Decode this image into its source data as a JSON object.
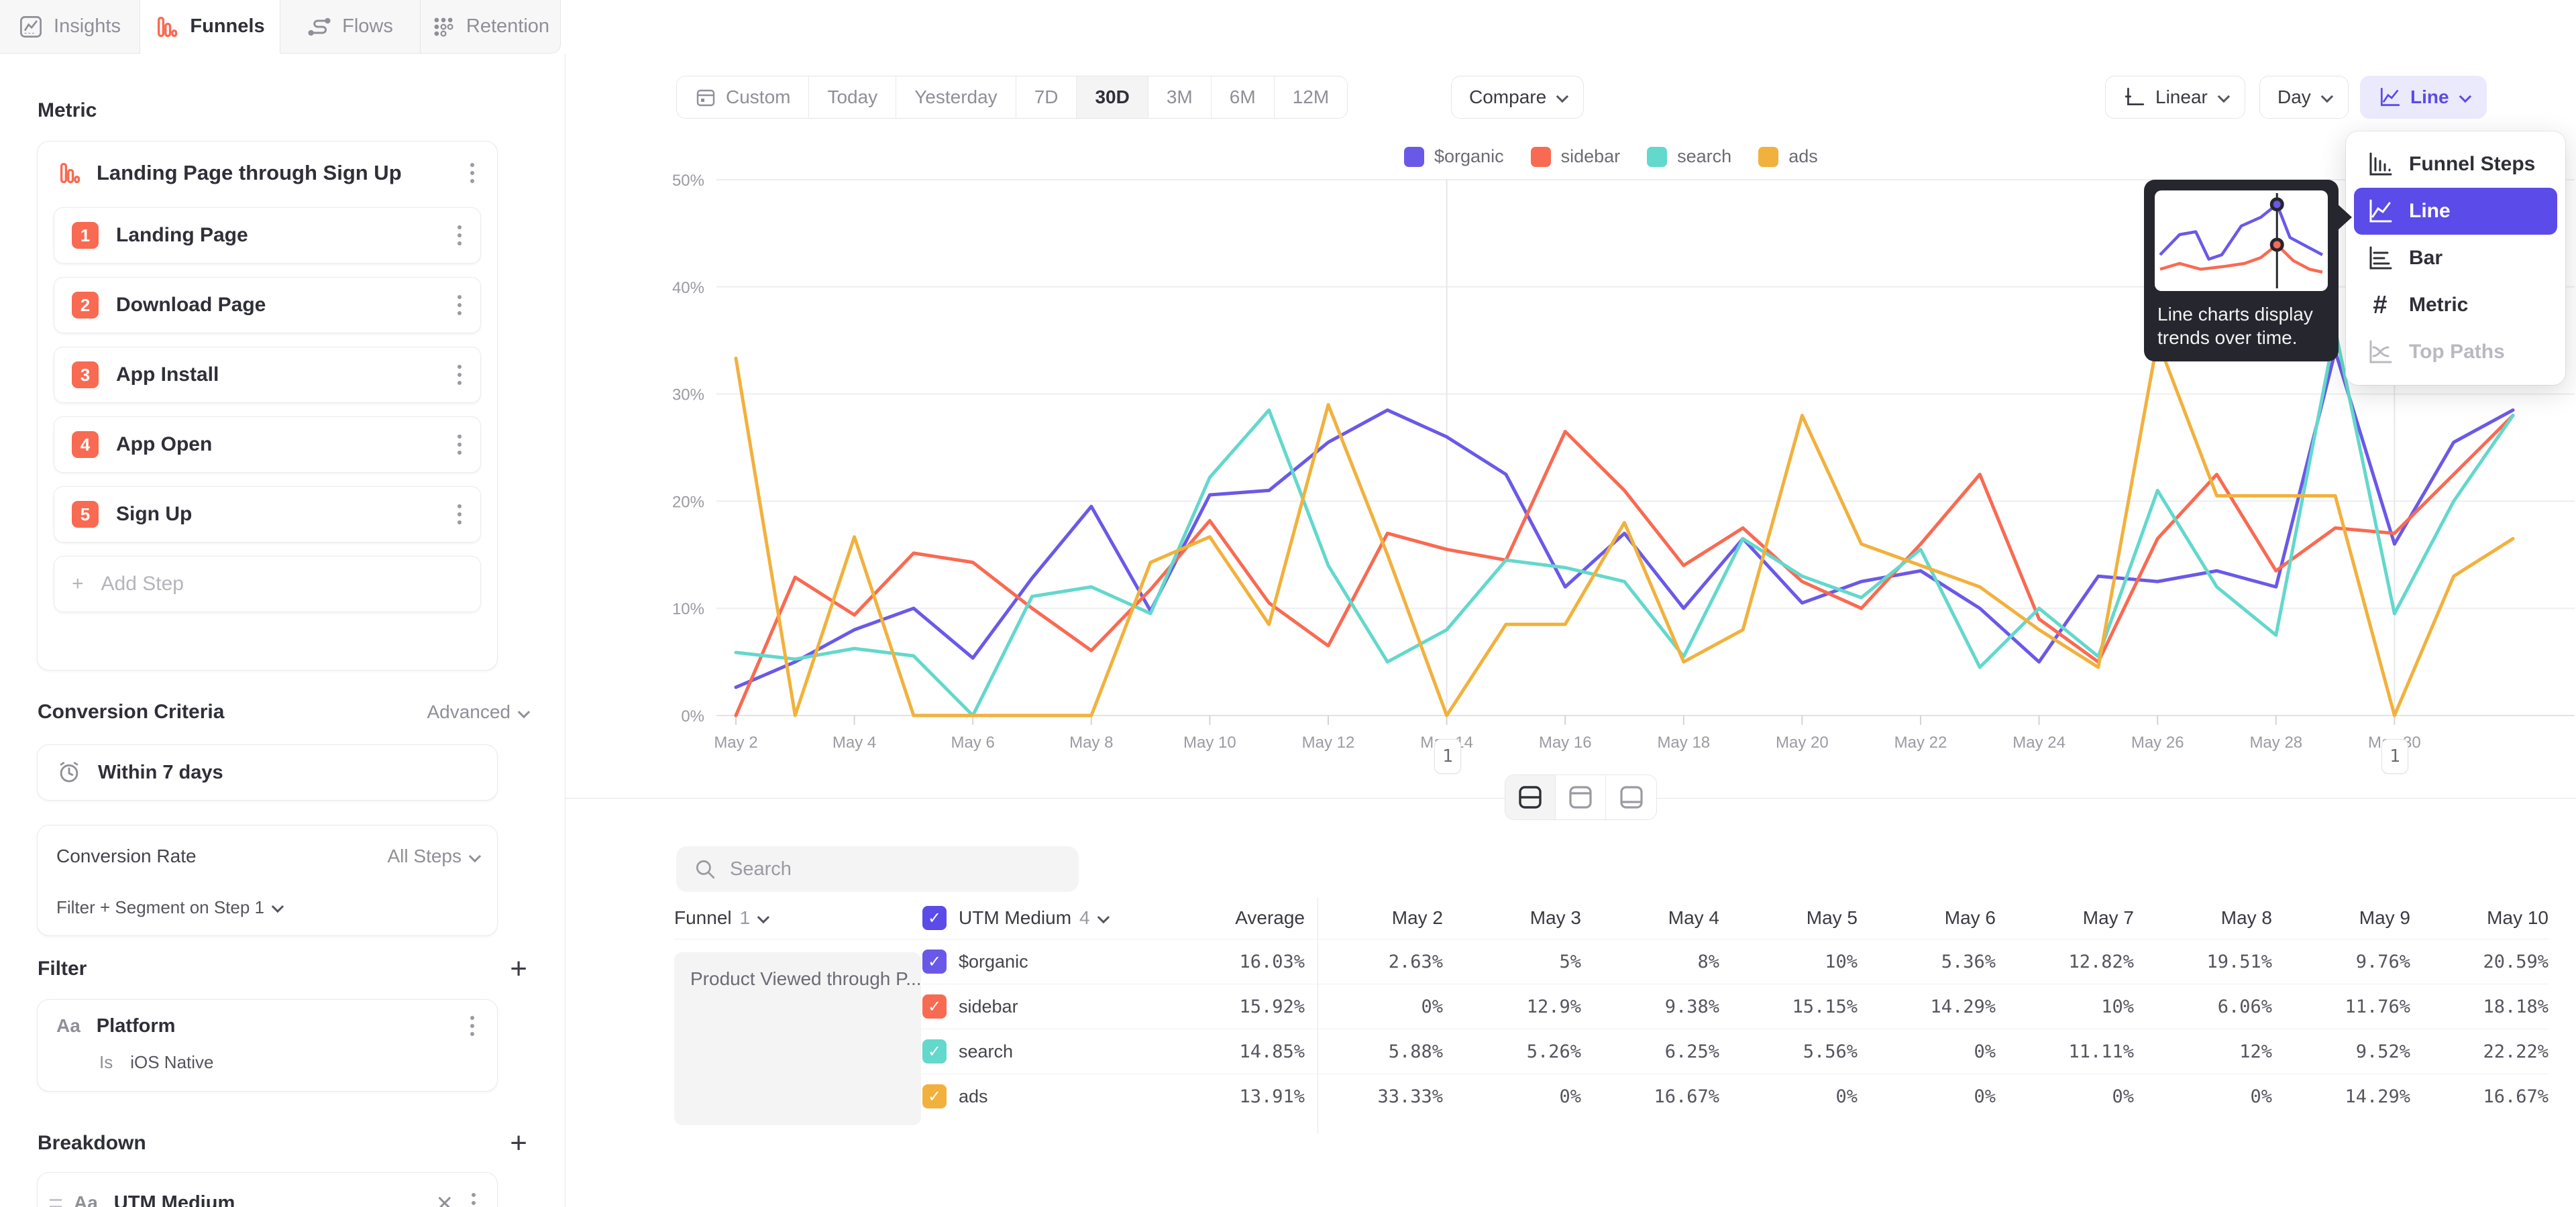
{
  "tabs": {
    "active": "Funnels",
    "items": [
      {
        "label": "Insights"
      },
      {
        "label": "Funnels"
      },
      {
        "label": "Flows"
      },
      {
        "label": "Retention"
      }
    ]
  },
  "sidebar": {
    "metric_label": "Metric",
    "funnel": {
      "title": "Landing Page through Sign Up",
      "steps": [
        {
          "num": "1",
          "label": "Landing Page"
        },
        {
          "num": "2",
          "label": "Download Page"
        },
        {
          "num": "3",
          "label": "App Install"
        },
        {
          "num": "4",
          "label": "App Open"
        },
        {
          "num": "5",
          "label": "Sign Up"
        }
      ],
      "add_step": "Add Step"
    },
    "conversion_criteria": {
      "label": "Conversion Criteria",
      "mode": "Advanced",
      "window": "Within 7 days",
      "rate_label": "Conversion Rate",
      "rate_value": "All Steps",
      "filter_segment": "Filter + Segment on Step 1"
    },
    "filter": {
      "label": "Filter",
      "type_icon": "Aa",
      "property": "Platform",
      "operator": "Is",
      "value": "iOS Native"
    },
    "breakdown": {
      "label": "Breakdown",
      "type_icon": "Aa",
      "property": "UTM Medium"
    }
  },
  "toolbar": {
    "ranges": [
      "Custom",
      "Today",
      "Yesterday",
      "7D",
      "30D",
      "3M",
      "6M",
      "12M"
    ],
    "active_range": "30D",
    "compare_label": "Compare",
    "scale_label": "Linear",
    "interval_label": "Day",
    "view_label": "Line"
  },
  "chart_data": {
    "type": "line",
    "title": "",
    "xlabel": "",
    "ylabel": "",
    "ylim": [
      0,
      50
    ],
    "yticks": [
      "0%",
      "10%",
      "20%",
      "30%",
      "40%",
      "50%"
    ],
    "grid": true,
    "legend_position": "top",
    "tick_every": 2,
    "x": [
      "May 2",
      "May 3",
      "May 4",
      "May 5",
      "May 6",
      "May 7",
      "May 8",
      "May 9",
      "May 10",
      "May 11",
      "May 12",
      "May 13",
      "May 14",
      "May 15",
      "May 16",
      "May 17",
      "May 18",
      "May 19",
      "May 20",
      "May 21",
      "May 22",
      "May 23",
      "May 24",
      "May 25",
      "May 26",
      "May 27",
      "May 28",
      "May 29",
      "May 30",
      "May 31",
      "Jun 1"
    ],
    "annotations": [
      {
        "index": 12,
        "label": "1"
      },
      {
        "index": 28,
        "label": "1"
      }
    ],
    "series": [
      {
        "name": "$organic",
        "color": "#6A59E8",
        "values": [
          2.63,
          5,
          8,
          10,
          5.36,
          12.82,
          19.51,
          9.76,
          20.59,
          21,
          25.5,
          28.5,
          26,
          22.5,
          12,
          17,
          10,
          16.5,
          10.5,
          12.5,
          13.5,
          10,
          5,
          13,
          12.5,
          13.5,
          12,
          34,
          16,
          25.5,
          28.5
        ]
      },
      {
        "name": "sidebar",
        "color": "#F96A52",
        "values": [
          0,
          12.9,
          9.38,
          15.15,
          14.29,
          10,
          6.06,
          11.76,
          18.18,
          10.5,
          6.5,
          17,
          15.5,
          14.5,
          26.5,
          21,
          14,
          17.5,
          12.5,
          10,
          16,
          22.5,
          9,
          5,
          16.5,
          22.5,
          13.5,
          17.5,
          17,
          22.5,
          28
        ]
      },
      {
        "name": "search",
        "color": "#63D8CC",
        "values": [
          5.88,
          5.26,
          6.25,
          5.56,
          0,
          11.11,
          12,
          9.52,
          22.22,
          28.5,
          14,
          5,
          8,
          14.5,
          13.8,
          12.5,
          5.5,
          16.5,
          13,
          11,
          15.5,
          4.5,
          10,
          5.5,
          21,
          12,
          7.5,
          36,
          9.5,
          20,
          28
        ]
      },
      {
        "name": "ads",
        "color": "#F2B13D",
        "values": [
          33.33,
          0,
          16.67,
          0,
          0,
          0,
          0,
          14.29,
          16.67,
          8.5,
          29,
          15,
          0,
          8.5,
          8.5,
          18,
          5,
          8,
          28,
          16,
          14,
          12,
          8,
          4.5,
          35,
          20.5,
          20.5,
          20.5,
          0,
          13,
          16.5
        ]
      }
    ]
  },
  "view_menu": {
    "items": [
      {
        "label": "Funnel Steps",
        "state": "normal"
      },
      {
        "label": "Line",
        "state": "selected"
      },
      {
        "label": "Bar",
        "state": "normal"
      },
      {
        "label": "Metric",
        "state": "normal"
      },
      {
        "label": "Top Paths",
        "state": "disabled"
      }
    ],
    "tooltip": {
      "text": "Line charts display trends over time.",
      "preview": {
        "purple": [
          [
            0,
            40
          ],
          [
            12,
            26
          ],
          [
            22,
            24
          ],
          [
            30,
            43
          ],
          [
            38,
            40
          ],
          [
            50,
            20
          ],
          [
            62,
            14
          ],
          [
            72,
            5
          ],
          [
            80,
            28
          ],
          [
            90,
            34
          ],
          [
            100,
            40
          ]
        ],
        "red": [
          [
            0,
            50
          ],
          [
            12,
            46
          ],
          [
            25,
            50
          ],
          [
            40,
            48
          ],
          [
            52,
            46
          ],
          [
            62,
            42
          ],
          [
            72,
            33
          ],
          [
            82,
            44
          ],
          [
            92,
            50
          ],
          [
            100,
            52
          ]
        ],
        "marker": {
          "x": 72,
          "purple_y": 5,
          "red_y": 33
        }
      }
    }
  },
  "bottom": {
    "search_placeholder": "Search",
    "layout_toggles": [
      "split-view",
      "chart-only-view",
      "table-only-view"
    ],
    "active_toggle": "split-view"
  },
  "table": {
    "funnel_header": {
      "label": "Funnel",
      "count": "1"
    },
    "segment_header": {
      "label": "UTM Medium",
      "count": "4"
    },
    "columns": [
      "Average",
      "May 2",
      "May 3",
      "May 4",
      "May 5",
      "May 6",
      "May 7",
      "May 8",
      "May 9",
      "May 10"
    ],
    "funnel_cell": "Product Viewed through P...",
    "rows": [
      {
        "name": "$organic",
        "color": "#6A59E8",
        "average": "16.03%",
        "values": [
          "2.63%",
          "5%",
          "8%",
          "10%",
          "5.36%",
          "12.82%",
          "19.51%",
          "9.76%",
          "20.59%"
        ]
      },
      {
        "name": "sidebar",
        "color": "#F96A52",
        "average": "15.92%",
        "values": [
          "0%",
          "12.9%",
          "9.38%",
          "15.15%",
          "14.29%",
          "10%",
          "6.06%",
          "11.76%",
          "18.18%"
        ]
      },
      {
        "name": "search",
        "color": "#63D8CC",
        "average": "14.85%",
        "values": [
          "5.88%",
          "5.26%",
          "6.25%",
          "5.56%",
          "0%",
          "11.11%",
          "12%",
          "9.52%",
          "22.22%"
        ]
      },
      {
        "name": "ads",
        "color": "#F2B13D",
        "average": "13.91%",
        "values": [
          "33.33%",
          "0%",
          "16.67%",
          "0%",
          "0%",
          "0%",
          "0%",
          "14.29%",
          "16.67%"
        ]
      }
    ]
  },
  "colors": {
    "accent": "#5B4BE8",
    "step_badge": "#F96A52",
    "organic": "#6A59E8",
    "sidebar": "#F96A52",
    "search": "#63D8CC",
    "ads": "#F2B13D"
  }
}
